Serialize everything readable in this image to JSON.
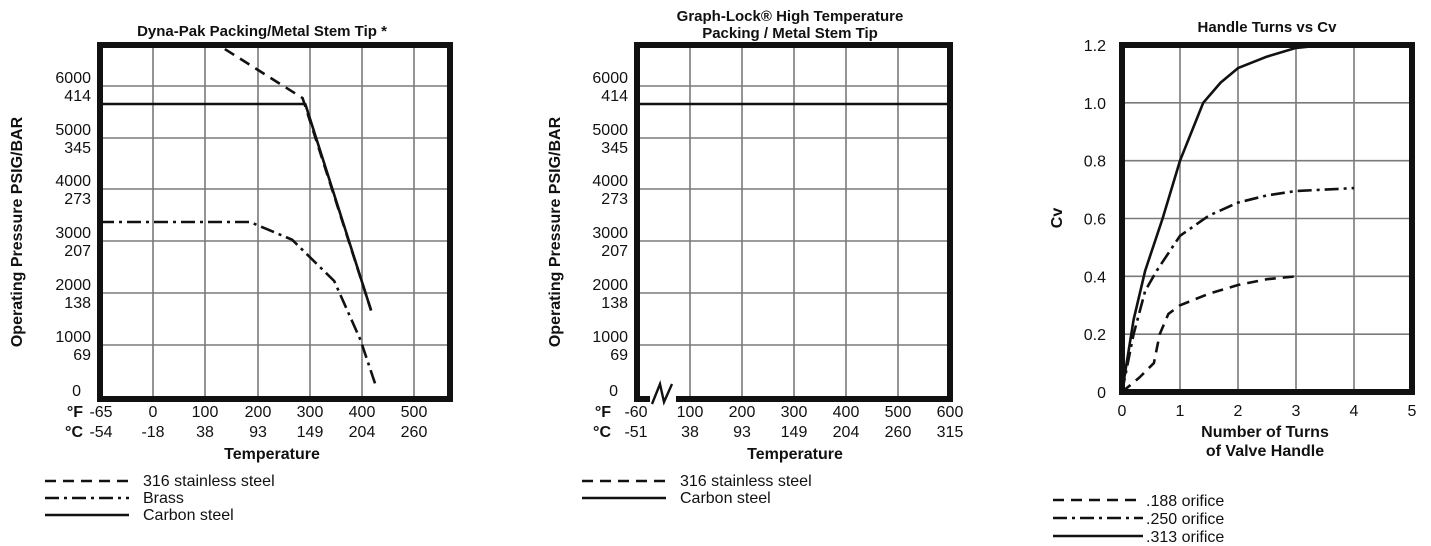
{
  "chart_data": [
    {
      "type": "line",
      "title": "Dyna-Pak Packing/Metal Stem Tip *",
      "ylabel": "Operating Pressure PSIG/BAR",
      "xlabel": "Temperature",
      "x_unit_f": "°F",
      "x_unit_c": "°C",
      "x_ticks_f": [
        "-65",
        "0",
        "100",
        "200",
        "300",
        "400",
        "500"
      ],
      "x_ticks_c": [
        "-54",
        "-18",
        "38",
        "93",
        "149",
        "204",
        "260"
      ],
      "y_ticks": [
        {
          "psig": "6000",
          "bar": "414"
        },
        {
          "psig": "5000",
          "bar": "345"
        },
        {
          "psig": "4000",
          "bar": "273"
        },
        {
          "psig": "3000",
          "bar": "207"
        },
        {
          "psig": "2000",
          "bar": "138"
        },
        {
          "psig": "1000",
          "bar": "69"
        },
        {
          "psig": "0",
          "bar": ""
        }
      ],
      "xlim": [
        -65,
        600
      ],
      "ylim": [
        0,
        6000
      ],
      "grid": true,
      "series": [
        {
          "name": "316 stainless steel",
          "style": "dashed",
          "x": [
            -65,
            160,
            320,
            450
          ],
          "y": [
            6000,
            6000,
            5100,
            1500
          ]
        },
        {
          "name": "Brass",
          "style": "dashdot",
          "x": [
            -65,
            220,
            300,
            380,
            430,
            460
          ],
          "y": [
            3000,
            3000,
            2700,
            2000,
            1000,
            200
          ]
        },
        {
          "name": "Carbon steel",
          "style": "solid",
          "x": [
            -65,
            325,
            450
          ],
          "y": [
            5000,
            5000,
            1500
          ]
        }
      ]
    },
    {
      "type": "line",
      "title": "Graph-Lock® High Temperature\nPacking / Metal Stem Tip",
      "title_line1": "Graph-Lock® High Temperature",
      "title_line2": "Packing / Metal Stem Tip",
      "ylabel": "Operating Pressure PSIG/BAR",
      "xlabel": "Temperature",
      "x_unit_f": "°F",
      "x_unit_c": "°C",
      "x_ticks_f": [
        "-60",
        "100",
        "200",
        "300",
        "400",
        "500",
        "600"
      ],
      "x_ticks_c": [
        "-51",
        "38",
        "93",
        "149",
        "204",
        "260",
        "315"
      ],
      "y_ticks": [
        {
          "psig": "6000",
          "bar": "414"
        },
        {
          "psig": "5000",
          "bar": "345"
        },
        {
          "psig": "4000",
          "bar": "273"
        },
        {
          "psig": "3000",
          "bar": "207"
        },
        {
          "psig": "2000",
          "bar": "138"
        },
        {
          "psig": "1000",
          "bar": "69"
        },
        {
          "psig": "0",
          "bar": ""
        }
      ],
      "xlim": [
        -60,
        600
      ],
      "ylim": [
        0,
        6000
      ],
      "grid": true,
      "axis_break": true,
      "series": [
        {
          "name": "316 stainless steel",
          "style": "dashed",
          "x": [
            -60,
            600
          ],
          "y": [
            6000,
            6000
          ]
        },
        {
          "name": "Carbon steel",
          "style": "solid",
          "x": [
            -60,
            600
          ],
          "y": [
            5000,
            5000
          ]
        }
      ]
    },
    {
      "type": "line",
      "title": "Handle Turns vs Cv",
      "ylabel": "Cv",
      "xlabel_line1": "Number of Turns",
      "xlabel_line2": "of Valve Handle",
      "x_ticks": [
        "0",
        "1",
        "2",
        "3",
        "4",
        "5"
      ],
      "y_ticks": [
        "1.2",
        "1.0",
        "0.8",
        "0.6",
        "0.4",
        "0.2",
        "0"
      ],
      "xlim": [
        0,
        5
      ],
      "ylim": [
        0,
        1.2
      ],
      "grid": true,
      "series": [
        {
          "name": ".188 orifice",
          "style": "dashed",
          "x": [
            0,
            0.3,
            0.55,
            0.65,
            0.8,
            1.0,
            1.5,
            2.0,
            2.5,
            3.0
          ],
          "y": [
            0,
            0.05,
            0.1,
            0.2,
            0.27,
            0.3,
            0.34,
            0.37,
            0.39,
            0.4
          ]
        },
        {
          "name": ".250 orifice",
          "style": "dashdot",
          "x": [
            0,
            0.2,
            0.4,
            0.6,
            0.8,
            1.0,
            1.5,
            2.0,
            2.5,
            3.0,
            3.5,
            4.0
          ],
          "y": [
            0,
            0.2,
            0.35,
            0.42,
            0.48,
            0.54,
            0.61,
            0.655,
            0.68,
            0.695,
            0.7,
            0.705
          ]
        },
        {
          "name": ".313 orifice",
          "style": "solid",
          "x": [
            0,
            0.2,
            0.4,
            0.7,
            1.0,
            1.4,
            1.7,
            2.0,
            2.5,
            3.0,
            3.5,
            4.0
          ],
          "y": [
            0,
            0.25,
            0.42,
            0.6,
            0.8,
            1.0,
            1.07,
            1.12,
            1.16,
            1.19,
            1.2,
            1.2
          ]
        }
      ]
    }
  ]
}
